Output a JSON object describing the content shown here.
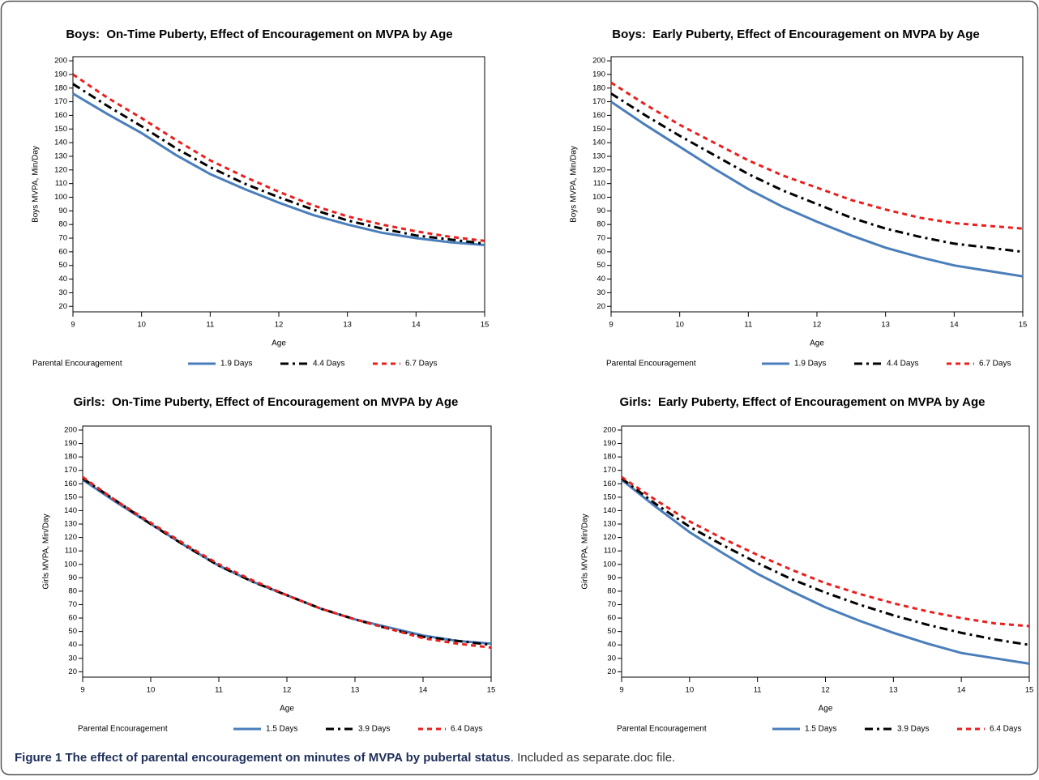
{
  "caption": {
    "bold": "Figure 1 The effect of parental encouragement on minutes of MVPA by pubertal status",
    "text": ". Included as separate.doc file."
  },
  "chart_data": [
    {
      "type": "line",
      "title": "Boys:  On-Time Puberty, Effect of Encouragement on MVPA by Age",
      "xlabel": "Age",
      "ylabel": "Boys MVPA, Min/Day",
      "legend_title": "Parental Encouragement",
      "x": [
        9,
        9.5,
        10,
        10.5,
        11,
        11.5,
        12,
        12.5,
        13,
        13.5,
        14,
        14.5,
        15
      ],
      "xlim": [
        9,
        15
      ],
      "xticks": [
        9,
        10,
        11,
        12,
        13,
        14,
        15
      ],
      "ylim": [
        16,
        203
      ],
      "yticks": [
        20,
        30,
        40,
        50,
        60,
        70,
        80,
        90,
        100,
        110,
        120,
        130,
        140,
        150,
        160,
        170,
        180,
        190,
        200
      ],
      "series": [
        {
          "name": "1.9 Days",
          "color": "#4a7ebb",
          "style": "solid",
          "values": [
            176,
            161,
            147,
            131,
            117,
            106,
            96,
            87,
            80,
            74,
            70,
            67,
            65
          ]
        },
        {
          "name": "4.4 Days",
          "color": "#000000",
          "style": "dashdot",
          "values": [
            183,
            167,
            152,
            136,
            122,
            110,
            100,
            91,
            83,
            77,
            72,
            69,
            66
          ]
        },
        {
          "name": "6.7 Days",
          "color": "#e8201e",
          "style": "dash",
          "values": [
            190,
            173,
            158,
            142,
            127,
            115,
            104,
            94,
            86,
            80,
            75,
            71,
            68
          ]
        }
      ]
    },
    {
      "type": "line",
      "title": "Boys:  Early Puberty, Effect of Encouragement on MVPA by Age",
      "xlabel": "Age",
      "ylabel": "Boys MVPA, Min/Day",
      "legend_title": "Parental Encouragement",
      "x": [
        9,
        9.5,
        10,
        10.5,
        11,
        11.5,
        12,
        12.5,
        13,
        13.5,
        14,
        14.5,
        15
      ],
      "xlim": [
        9,
        15
      ],
      "xticks": [
        9,
        10,
        11,
        12,
        13,
        14,
        15
      ],
      "ylim": [
        16,
        203
      ],
      "yticks": [
        20,
        30,
        40,
        50,
        60,
        70,
        80,
        90,
        100,
        110,
        120,
        130,
        140,
        150,
        160,
        170,
        180,
        190,
        200
      ],
      "series": [
        {
          "name": "1.9 Days",
          "color": "#4a7ebb",
          "style": "solid",
          "values": [
            170,
            153,
            137,
            121,
            106,
            93,
            82,
            72,
            63,
            56,
            50,
            46,
            42
          ]
        },
        {
          "name": "4.4 Days",
          "color": "#000000",
          "style": "dashdot",
          "values": [
            176,
            160,
            145,
            131,
            117,
            105,
            95,
            85,
            77,
            71,
            66,
            63,
            60
          ]
        },
        {
          "name": "6.7 Days",
          "color": "#e8201e",
          "style": "dash",
          "values": [
            184,
            168,
            153,
            140,
            127,
            116,
            107,
            98,
            91,
            85,
            81,
            79,
            77
          ]
        }
      ]
    },
    {
      "type": "line",
      "title": "Girls:  On-Time Puberty, Effect of Encouragement on MVPA by Age",
      "xlabel": "Age",
      "ylabel": "Girls MVPA, Min/Day",
      "legend_title": "Parental Encouragement",
      "x": [
        9,
        9.5,
        10,
        10.5,
        11,
        11.5,
        12,
        12.5,
        13,
        13.5,
        14,
        14.5,
        15
      ],
      "xlim": [
        9,
        15
      ],
      "xticks": [
        9,
        10,
        11,
        12,
        13,
        14,
        15
      ],
      "ylim": [
        16,
        203
      ],
      "yticks": [
        20,
        30,
        40,
        50,
        60,
        70,
        80,
        90,
        100,
        110,
        120,
        130,
        140,
        150,
        160,
        170,
        180,
        190,
        200
      ],
      "series": [
        {
          "name": "1.5 Days",
          "color": "#4a7ebb",
          "style": "solid",
          "values": [
            163,
            146,
            130,
            114,
            99,
            87,
            77,
            67,
            59,
            53,
            47,
            43,
            41
          ]
        },
        {
          "name": "3.9 Days",
          "color": "#000000",
          "style": "dashdot",
          "values": [
            164,
            147,
            130,
            114,
            99,
            87,
            77,
            67,
            59,
            52,
            46,
            43,
            40
          ]
        },
        {
          "name": "6.4 Days",
          "color": "#e8201e",
          "style": "dash",
          "values": [
            165,
            147,
            131,
            115,
            100,
            88,
            77,
            67,
            59,
            52,
            45,
            41,
            38
          ]
        }
      ]
    },
    {
      "type": "line",
      "title": "Girls:  Early Puberty, Effect of Encouragement on MVPA by Age",
      "xlabel": "Age",
      "ylabel": "Girls MVPA, Min/Day",
      "legend_title": "Parental Encouragement",
      "x": [
        9,
        9.5,
        10,
        10.5,
        11,
        11.5,
        12,
        12.5,
        13,
        13.5,
        14,
        14.5,
        15
      ],
      "xlim": [
        9,
        15
      ],
      "xticks": [
        9,
        10,
        11,
        12,
        13,
        14,
        15
      ],
      "ylim": [
        16,
        203
      ],
      "yticks": [
        20,
        30,
        40,
        50,
        60,
        70,
        80,
        90,
        100,
        110,
        120,
        130,
        140,
        150,
        160,
        170,
        180,
        190,
        200
      ],
      "series": [
        {
          "name": "1.5 Days",
          "color": "#4a7ebb",
          "style": "solid",
          "values": [
            163,
            143,
            124,
            108,
            93,
            80,
            68,
            58,
            49,
            41,
            34,
            30,
            26
          ]
        },
        {
          "name": "3.9 Days",
          "color": "#000000",
          "style": "dashdot",
          "values": [
            164,
            145,
            128,
            114,
            101,
            89,
            79,
            70,
            62,
            55,
            49,
            44,
            40
          ]
        },
        {
          "name": "6.4 Days",
          "color": "#e8201e",
          "style": "dash",
          "values": [
            165,
            148,
            132,
            119,
            107,
            96,
            86,
            78,
            71,
            65,
            60,
            56,
            54
          ]
        }
      ]
    }
  ]
}
